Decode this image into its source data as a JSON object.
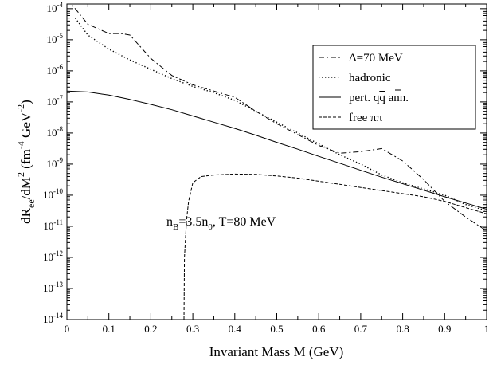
{
  "chart_data": {
    "type": "line",
    "title": "",
    "xlabel": "Invariant Mass M (GeV)",
    "ylabel": "dR_ee/dM² (fm⁻⁴ GeV⁻²)",
    "ylabel_parts": {
      "base": "dR",
      "sub": "ee",
      "mid": "/dM",
      "sup2": "2",
      "paren_open": " (fm",
      "sup_fm": "-4",
      "gev": " GeV",
      "sup_gev": "-2",
      "paren_close": ")"
    },
    "xlim": [
      0,
      1
    ],
    "ylim_log10": [
      -14,
      -3.85
    ],
    "y_scale": "log",
    "x_ticks": [
      0,
      0.1,
      0.2,
      0.3,
      0.4,
      0.5,
      0.6,
      0.7,
      0.8,
      0.9,
      1
    ],
    "x_tick_labels": [
      "0",
      "0.1",
      "0.2",
      "0.3",
      "0.4",
      "0.5",
      "0.6",
      "0.7",
      "0.8",
      "0.9",
      "1"
    ],
    "y_ticks_exp": [
      -14,
      -13,
      -12,
      -11,
      -10,
      -9,
      -8,
      -7,
      -6,
      -5,
      -4
    ],
    "y_tick_base": "10",
    "grid": false,
    "legend_position": "top-right",
    "annotation": {
      "n": "n",
      "sub_B": "B",
      "eq": "=3.5n",
      "sub_0": "0",
      "rest": ", T=80 MeV"
    },
    "series": [
      {
        "name": "Δ=70 MeV",
        "style": "dash-dot",
        "x": [
          0.0,
          0.02,
          0.05,
          0.1,
          0.13,
          0.15,
          0.2,
          0.25,
          0.3,
          0.35,
          0.4,
          0.45,
          0.5,
          0.55,
          0.6,
          0.65,
          0.7,
          0.75,
          0.8,
          0.85,
          0.9,
          0.95,
          1.0
        ],
        "log10_y": [
          -3.7,
          -4.0,
          -4.5,
          -4.8,
          -4.8,
          -4.85,
          -5.6,
          -6.15,
          -6.45,
          -6.65,
          -6.85,
          -7.3,
          -7.7,
          -8.05,
          -8.4,
          -8.65,
          -8.6,
          -8.5,
          -8.9,
          -9.5,
          -10.2,
          -10.7,
          -11.15
        ]
      },
      {
        "name": "hadronic",
        "style": "dotted",
        "x": [
          0.02,
          0.05,
          0.1,
          0.15,
          0.2,
          0.25,
          0.3,
          0.35,
          0.4,
          0.45,
          0.5,
          0.55,
          0.6,
          0.65,
          0.7,
          0.75,
          0.8,
          0.85,
          0.9,
          0.95,
          1.0
        ],
        "log10_y": [
          -4.3,
          -4.85,
          -5.3,
          -5.65,
          -5.95,
          -6.25,
          -6.5,
          -6.7,
          -6.95,
          -7.3,
          -7.65,
          -8.0,
          -8.35,
          -8.7,
          -9.0,
          -9.35,
          -9.6,
          -9.8,
          -10.0,
          -10.3,
          -10.5
        ]
      },
      {
        "name": "pert. qq ann.",
        "style": "solid",
        "x": [
          0.0,
          0.05,
          0.1,
          0.15,
          0.2,
          0.25,
          0.3,
          0.35,
          0.4,
          0.45,
          0.5,
          0.55,
          0.6,
          0.65,
          0.7,
          0.75,
          0.8,
          0.85,
          0.9,
          0.95,
          1.0
        ],
        "log10_y": [
          -6.65,
          -6.68,
          -6.78,
          -6.92,
          -7.08,
          -7.25,
          -7.45,
          -7.65,
          -7.85,
          -8.07,
          -8.3,
          -8.52,
          -8.75,
          -8.97,
          -9.2,
          -9.42,
          -9.63,
          -9.84,
          -10.05,
          -10.25,
          -10.45
        ]
      },
      {
        "name": "free ππ",
        "style": "dashed",
        "x": [
          0.279,
          0.28,
          0.285,
          0.29,
          0.3,
          0.32,
          0.35,
          0.4,
          0.45,
          0.5,
          0.55,
          0.6,
          0.65,
          0.7,
          0.75,
          0.8,
          0.85,
          0.9,
          0.95,
          1.0
        ],
        "log10_y": [
          -14.0,
          -12.0,
          -10.8,
          -10.2,
          -9.6,
          -9.4,
          -9.35,
          -9.32,
          -9.33,
          -9.38,
          -9.45,
          -9.55,
          -9.65,
          -9.75,
          -9.85,
          -9.95,
          -10.05,
          -10.2,
          -10.4,
          -10.6
        ]
      }
    ],
    "legend_labels": {
      "delta": "Δ=70 MeV",
      "hadronic": "hadronic",
      "pert_pre": "pert. ",
      "pert_q1": "q",
      "pert_q2": "q",
      "pert_post": " ann.",
      "free": "free ππ"
    }
  }
}
